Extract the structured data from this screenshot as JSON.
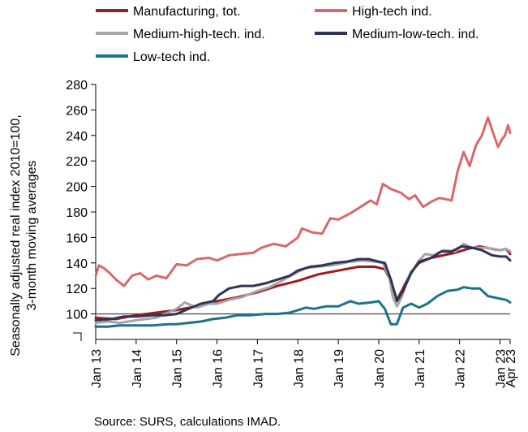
{
  "chart_data": {
    "type": "line",
    "ylabel": [
      "Seasonally adjusted real index 2010=100,",
      "3-month moving averages"
    ],
    "source": "Source: SURS, calculations IMAD.",
    "ylim": [
      80,
      280
    ],
    "yticks": [
      100,
      120,
      140,
      160,
      180,
      200,
      220,
      240,
      260,
      280
    ],
    "xlim": [
      2013.0,
      2023.25
    ],
    "xticks": [
      {
        "label": "Jan 13",
        "x": 2013.0
      },
      {
        "label": "Jan 14",
        "x": 2014.0
      },
      {
        "label": "Jan 15",
        "x": 2015.0
      },
      {
        "label": "Jan 16",
        "x": 2016.0
      },
      {
        "label": "Jan 17",
        "x": 2017.0
      },
      {
        "label": "Jan 18",
        "x": 2018.0
      },
      {
        "label": "Jan 19",
        "x": 2019.0
      },
      {
        "label": "Jan 20",
        "x": 2020.0
      },
      {
        "label": "Jan 21",
        "x": 2021.0
      },
      {
        "label": "Jan 22",
        "x": 2022.0
      },
      {
        "label": "Jan 23",
        "x": 2023.0
      },
      {
        "label": "Apr 23",
        "x": 2023.25
      }
    ],
    "reference_line": 100,
    "legend_position": "top",
    "series": [
      {
        "name": "Manufacturing, tot.",
        "color": "#9e1b1f",
        "points": [
          [
            2013.0,
            97
          ],
          [
            2013.5,
            96
          ],
          [
            2014.0,
            99
          ],
          [
            2014.5,
            101
          ],
          [
            2015.0,
            103
          ],
          [
            2015.5,
            106
          ],
          [
            2016.0,
            110
          ],
          [
            2016.5,
            113
          ],
          [
            2017.0,
            117
          ],
          [
            2017.5,
            122
          ],
          [
            2018.0,
            126
          ],
          [
            2018.5,
            131
          ],
          [
            2019.0,
            134
          ],
          [
            2019.5,
            137
          ],
          [
            2019.9,
            137
          ],
          [
            2020.15,
            135
          ],
          [
            2020.3,
            126
          ],
          [
            2020.45,
            111
          ],
          [
            2020.6,
            120
          ],
          [
            2020.8,
            133
          ],
          [
            2021.0,
            140
          ],
          [
            2021.3,
            144
          ],
          [
            2021.6,
            146
          ],
          [
            2021.9,
            148
          ],
          [
            2022.2,
            151
          ],
          [
            2022.5,
            153
          ],
          [
            2022.8,
            151
          ],
          [
            2023.0,
            150
          ],
          [
            2023.15,
            151
          ],
          [
            2023.25,
            147
          ]
        ]
      },
      {
        "name": "High-tech ind.",
        "color": "#d9686a",
        "points": [
          [
            2013.0,
            130
          ],
          [
            2013.08,
            138
          ],
          [
            2013.2,
            136
          ],
          [
            2013.35,
            132
          ],
          [
            2013.5,
            127
          ],
          [
            2013.7,
            122
          ],
          [
            2013.9,
            130
          ],
          [
            2014.1,
            132
          ],
          [
            2014.3,
            127
          ],
          [
            2014.5,
            130
          ],
          [
            2014.75,
            128
          ],
          [
            2015.0,
            139
          ],
          [
            2015.25,
            138
          ],
          [
            2015.5,
            143
          ],
          [
            2015.8,
            144
          ],
          [
            2016.0,
            142
          ],
          [
            2016.3,
            146
          ],
          [
            2016.6,
            147
          ],
          [
            2016.9,
            148
          ],
          [
            2017.1,
            152
          ],
          [
            2017.4,
            155
          ],
          [
            2017.7,
            153
          ],
          [
            2018.0,
            160
          ],
          [
            2018.1,
            167
          ],
          [
            2018.35,
            164
          ],
          [
            2018.6,
            163
          ],
          [
            2018.8,
            175
          ],
          [
            2019.0,
            174
          ],
          [
            2019.3,
            179
          ],
          [
            2019.6,
            185
          ],
          [
            2019.8,
            189
          ],
          [
            2019.95,
            186
          ],
          [
            2020.1,
            202
          ],
          [
            2020.3,
            198
          ],
          [
            2020.55,
            195
          ],
          [
            2020.75,
            190
          ],
          [
            2020.9,
            193
          ],
          [
            2021.1,
            184
          ],
          [
            2021.3,
            188
          ],
          [
            2021.5,
            191
          ],
          [
            2021.8,
            189
          ],
          [
            2021.95,
            212
          ],
          [
            2022.1,
            227
          ],
          [
            2022.25,
            216
          ],
          [
            2022.4,
            232
          ],
          [
            2022.55,
            240
          ],
          [
            2022.7,
            254
          ],
          [
            2022.85,
            240
          ],
          [
            2022.95,
            231
          ],
          [
            2023.05,
            237
          ],
          [
            2023.12,
            240
          ],
          [
            2023.2,
            248
          ],
          [
            2023.25,
            242
          ]
        ]
      },
      {
        "name": "Medium-high-tech. ind.",
        "color": "#a5a5a5",
        "points": [
          [
            2013.0,
            93
          ],
          [
            2013.3,
            94
          ],
          [
            2013.6,
            93
          ],
          [
            2014.0,
            95
          ],
          [
            2014.5,
            97
          ],
          [
            2015.0,
            104
          ],
          [
            2015.2,
            109
          ],
          [
            2015.5,
            105
          ],
          [
            2015.8,
            108
          ],
          [
            2016.0,
            108
          ],
          [
            2016.3,
            111
          ],
          [
            2016.6,
            113
          ],
          [
            2017.0,
            118
          ],
          [
            2017.3,
            121
          ],
          [
            2017.6,
            126
          ],
          [
            2018.0,
            133
          ],
          [
            2018.2,
            136
          ],
          [
            2018.5,
            137
          ],
          [
            2018.8,
            138
          ],
          [
            2019.0,
            139
          ],
          [
            2019.3,
            141
          ],
          [
            2019.6,
            142
          ],
          [
            2019.9,
            141
          ],
          [
            2020.1,
            140
          ],
          [
            2020.25,
            130
          ],
          [
            2020.35,
            113
          ],
          [
            2020.45,
            106
          ],
          [
            2020.55,
            112
          ],
          [
            2020.75,
            130
          ],
          [
            2021.0,
            142
          ],
          [
            2021.15,
            147
          ],
          [
            2021.35,
            146
          ],
          [
            2021.6,
            150
          ],
          [
            2021.9,
            149
          ],
          [
            2022.1,
            155
          ],
          [
            2022.3,
            152
          ],
          [
            2022.6,
            152
          ],
          [
            2022.85,
            151
          ],
          [
            2023.0,
            150
          ],
          [
            2023.15,
            151
          ],
          [
            2023.25,
            149
          ]
        ]
      },
      {
        "name": "Medium-low-tech. ind.",
        "color": "#2e3557",
        "points": [
          [
            2013.0,
            95
          ],
          [
            2013.4,
            96
          ],
          [
            2013.7,
            98
          ],
          [
            2014.0,
            98
          ],
          [
            2014.4,
            99
          ],
          [
            2014.7,
            99
          ],
          [
            2015.0,
            100
          ],
          [
            2015.3,
            104
          ],
          [
            2015.6,
            108
          ],
          [
            2015.9,
            110
          ],
          [
            2016.05,
            115
          ],
          [
            2016.3,
            120
          ],
          [
            2016.6,
            122
          ],
          [
            2016.9,
            122
          ],
          [
            2017.2,
            124
          ],
          [
            2017.5,
            127
          ],
          [
            2017.8,
            130
          ],
          [
            2018.0,
            134
          ],
          [
            2018.3,
            137
          ],
          [
            2018.6,
            138
          ],
          [
            2018.9,
            140
          ],
          [
            2019.2,
            141
          ],
          [
            2019.5,
            143
          ],
          [
            2019.75,
            143
          ],
          [
            2020.0,
            141
          ],
          [
            2020.15,
            140
          ],
          [
            2020.3,
            127
          ],
          [
            2020.45,
            110
          ],
          [
            2020.6,
            118
          ],
          [
            2020.8,
            132
          ],
          [
            2021.0,
            141
          ],
          [
            2021.3,
            144
          ],
          [
            2021.55,
            149
          ],
          [
            2021.8,
            149
          ],
          [
            2022.05,
            153
          ],
          [
            2022.3,
            152
          ],
          [
            2022.55,
            150
          ],
          [
            2022.8,
            146
          ],
          [
            2023.0,
            145
          ],
          [
            2023.15,
            145
          ],
          [
            2023.25,
            142
          ]
        ]
      },
      {
        "name": "Low-tech ind.",
        "color": "#1e7289",
        "points": [
          [
            2013.0,
            90
          ],
          [
            2013.3,
            90
          ],
          [
            2013.6,
            91
          ],
          [
            2014.0,
            91
          ],
          [
            2014.4,
            91
          ],
          [
            2014.8,
            92
          ],
          [
            2015.0,
            92
          ],
          [
            2015.3,
            93
          ],
          [
            2015.6,
            94
          ],
          [
            2015.9,
            96
          ],
          [
            2016.2,
            97
          ],
          [
            2016.5,
            99
          ],
          [
            2016.8,
            99
          ],
          [
            2017.2,
            100
          ],
          [
            2017.5,
            100
          ],
          [
            2017.8,
            101
          ],
          [
            2018.0,
            103
          ],
          [
            2018.2,
            105
          ],
          [
            2018.4,
            104
          ],
          [
            2018.7,
            106
          ],
          [
            2019.0,
            106
          ],
          [
            2019.3,
            110
          ],
          [
            2019.5,
            108
          ],
          [
            2019.8,
            109
          ],
          [
            2020.0,
            110
          ],
          [
            2020.15,
            104
          ],
          [
            2020.3,
            92
          ],
          [
            2020.45,
            92
          ],
          [
            2020.6,
            105
          ],
          [
            2020.8,
            108
          ],
          [
            2021.0,
            105
          ],
          [
            2021.2,
            108
          ],
          [
            2021.45,
            114
          ],
          [
            2021.7,
            118
          ],
          [
            2021.95,
            119
          ],
          [
            2022.1,
            121
          ],
          [
            2022.3,
            120
          ],
          [
            2022.5,
            120
          ],
          [
            2022.7,
            114
          ],
          [
            2022.85,
            113
          ],
          [
            2023.0,
            112
          ],
          [
            2023.15,
            111
          ],
          [
            2023.25,
            109
          ]
        ]
      }
    ]
  }
}
